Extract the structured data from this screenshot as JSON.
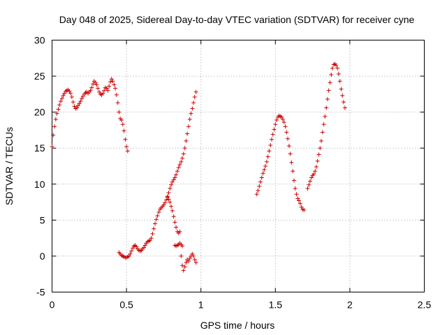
{
  "chart_data": {
    "type": "scatter",
    "title": "Day 048 of 2025, Sidereal Day-to-day VTEC variation (SDTVAR) for receiver cyne",
    "xlabel": "GPS time / hours",
    "ylabel": "SDTVAR / TECUs",
    "xlim": [
      0,
      2.5
    ],
    "ylim": [
      -5,
      30
    ],
    "xticks": [
      0,
      0.5,
      1,
      1.5,
      2,
      2.5
    ],
    "xtick_labels": [
      "0",
      "0.5",
      "1",
      "1.5",
      "2",
      "2.5"
    ],
    "yticks": [
      -5,
      0,
      5,
      10,
      15,
      20,
      25,
      30
    ],
    "ytick_labels": [
      "-5",
      "0",
      "5",
      "10",
      "15",
      "20",
      "25",
      "30"
    ],
    "grid": true,
    "marker": "+",
    "color": "#cc0000",
    "series": [
      {
        "name": "SDTVAR",
        "points": [
          [
            0.0,
            15.2
          ],
          [
            0.008,
            16.8
          ],
          [
            0.017,
            18.0
          ],
          [
            0.025,
            19.0
          ],
          [
            0.033,
            19.8
          ],
          [
            0.042,
            20.4
          ],
          [
            0.05,
            21.0
          ],
          [
            0.058,
            21.5
          ],
          [
            0.067,
            21.9
          ],
          [
            0.075,
            22.3
          ],
          [
            0.083,
            22.6
          ],
          [
            0.092,
            22.9
          ],
          [
            0.1,
            23.0
          ],
          [
            0.108,
            23.1
          ],
          [
            0.117,
            22.9
          ],
          [
            0.125,
            22.6
          ],
          [
            0.133,
            22.1
          ],
          [
            0.142,
            21.4
          ],
          [
            0.15,
            20.8
          ],
          [
            0.158,
            20.5
          ],
          [
            0.167,
            20.6
          ],
          [
            0.175,
            20.9
          ],
          [
            0.183,
            21.2
          ],
          [
            0.192,
            21.5
          ],
          [
            0.2,
            21.9
          ],
          [
            0.208,
            22.2
          ],
          [
            0.217,
            22.5
          ],
          [
            0.225,
            22.7
          ],
          [
            0.233,
            22.8
          ],
          [
            0.242,
            22.6
          ],
          [
            0.25,
            22.8
          ],
          [
            0.258,
            23.0
          ],
          [
            0.267,
            23.4
          ],
          [
            0.275,
            23.9
          ],
          [
            0.283,
            24.3
          ],
          [
            0.292,
            24.1
          ],
          [
            0.3,
            23.8
          ],
          [
            0.308,
            23.3
          ],
          [
            0.317,
            22.8
          ],
          [
            0.325,
            22.5
          ],
          [
            0.333,
            22.4
          ],
          [
            0.342,
            22.6
          ],
          [
            0.35,
            23.0
          ],
          [
            0.358,
            23.4
          ],
          [
            0.367,
            23.3
          ],
          [
            0.375,
            23.0
          ],
          [
            0.383,
            23.6
          ],
          [
            0.392,
            24.2
          ],
          [
            0.4,
            24.6
          ],
          [
            0.408,
            24.3
          ],
          [
            0.417,
            23.8
          ],
          [
            0.425,
            23.3
          ],
          [
            0.433,
            22.4
          ],
          [
            0.442,
            21.3
          ],
          [
            0.45,
            20.0
          ],
          [
            0.458,
            19.1
          ],
          [
            0.467,
            18.9
          ],
          [
            0.475,
            18.3
          ],
          [
            0.483,
            17.4
          ],
          [
            0.492,
            16.2
          ],
          [
            0.5,
            15.2
          ],
          [
            0.508,
            14.6
          ],
          [
            0.45,
            0.5
          ],
          [
            0.458,
            0.3
          ],
          [
            0.467,
            0.1
          ],
          [
            0.475,
            0.0
          ],
          [
            0.483,
            -0.1
          ],
          [
            0.492,
            -0.2
          ],
          [
            0.5,
            -0.2
          ],
          [
            0.508,
            -0.1
          ],
          [
            0.517,
            0.0
          ],
          [
            0.525,
            0.3
          ],
          [
            0.533,
            0.7
          ],
          [
            0.542,
            1.1
          ],
          [
            0.55,
            1.4
          ],
          [
            0.558,
            1.5
          ],
          [
            0.567,
            1.3
          ],
          [
            0.575,
            1.0
          ],
          [
            0.583,
            0.8
          ],
          [
            0.592,
            0.7
          ],
          [
            0.6,
            0.8
          ],
          [
            0.608,
            1.0
          ],
          [
            0.617,
            1.2
          ],
          [
            0.625,
            1.5
          ],
          [
            0.633,
            1.8
          ],
          [
            0.642,
            2.0
          ],
          [
            0.65,
            2.1
          ],
          [
            0.658,
            2.2
          ],
          [
            0.667,
            2.5
          ],
          [
            0.675,
            3.1
          ],
          [
            0.683,
            3.8
          ],
          [
            0.692,
            4.5
          ],
          [
            0.7,
            5.1
          ],
          [
            0.708,
            5.6
          ],
          [
            0.717,
            6.1
          ],
          [
            0.725,
            6.5
          ],
          [
            0.733,
            6.7
          ],
          [
            0.742,
            6.9
          ],
          [
            0.75,
            7.1
          ],
          [
            0.758,
            7.4
          ],
          [
            0.767,
            7.8
          ],
          [
            0.775,
            8.2
          ],
          [
            0.783,
            8.8
          ],
          [
            0.792,
            9.4
          ],
          [
            0.8,
            9.9
          ],
          [
            0.808,
            10.3
          ],
          [
            0.817,
            10.6
          ],
          [
            0.825,
            10.9
          ],
          [
            0.833,
            11.3
          ],
          [
            0.842,
            11.8
          ],
          [
            0.85,
            12.3
          ],
          [
            0.858,
            12.7
          ],
          [
            0.867,
            13.1
          ],
          [
            0.875,
            13.6
          ],
          [
            0.883,
            14.2
          ],
          [
            0.892,
            15.0
          ],
          [
            0.9,
            16.0
          ],
          [
            0.908,
            17.0
          ],
          [
            0.917,
            18.0
          ],
          [
            0.925,
            19.0
          ],
          [
            0.933,
            19.8
          ],
          [
            0.942,
            20.5
          ],
          [
            0.95,
            21.3
          ],
          [
            0.958,
            22.1
          ],
          [
            0.967,
            22.8
          ],
          [
            0.775,
            8.3
          ],
          [
            0.783,
            7.9
          ],
          [
            0.792,
            7.5
          ],
          [
            0.8,
            6.9
          ],
          [
            0.808,
            6.3
          ],
          [
            0.817,
            5.5
          ],
          [
            0.825,
            4.7
          ],
          [
            0.833,
            4.0
          ],
          [
            0.842,
            3.4
          ],
          [
            0.85,
            3.2
          ],
          [
            0.858,
            3.4
          ],
          [
            0.825,
            1.5
          ],
          [
            0.833,
            1.4
          ],
          [
            0.842,
            1.5
          ],
          [
            0.85,
            1.6
          ],
          [
            0.858,
            1.8
          ],
          [
            0.867,
            1.6
          ],
          [
            0.875,
            1.4
          ],
          [
            0.867,
            0.0
          ],
          [
            0.875,
            -1.3
          ],
          [
            0.883,
            -2.0
          ],
          [
            0.892,
            -1.5
          ],
          [
            0.9,
            -0.9
          ],
          [
            0.908,
            -0.5
          ],
          [
            0.917,
            -0.7
          ],
          [
            0.925,
            -0.3
          ],
          [
            0.933,
            0.0
          ],
          [
            0.942,
            0.3
          ],
          [
            0.95,
            0.0
          ],
          [
            0.958,
            -0.5
          ],
          [
            0.967,
            -0.9
          ],
          [
            1.375,
            8.6
          ],
          [
            1.383,
            9.1
          ],
          [
            1.392,
            9.7
          ],
          [
            1.4,
            10.3
          ],
          [
            1.408,
            10.9
          ],
          [
            1.417,
            11.5
          ],
          [
            1.425,
            12.0
          ],
          [
            1.433,
            12.5
          ],
          [
            1.442,
            13.1
          ],
          [
            1.45,
            13.8
          ],
          [
            1.458,
            14.6
          ],
          [
            1.467,
            15.4
          ],
          [
            1.475,
            16.2
          ],
          [
            1.483,
            16.9
          ],
          [
            1.492,
            17.6
          ],
          [
            1.5,
            18.3
          ],
          [
            1.508,
            18.9
          ],
          [
            1.517,
            19.3
          ],
          [
            1.525,
            19.5
          ],
          [
            1.533,
            19.4
          ],
          [
            1.542,
            19.3
          ],
          [
            1.55,
            19.0
          ],
          [
            1.558,
            18.6
          ],
          [
            1.567,
            18.0
          ],
          [
            1.575,
            17.2
          ],
          [
            1.583,
            16.3
          ],
          [
            1.592,
            15.3
          ],
          [
            1.6,
            14.2
          ],
          [
            1.608,
            13.0
          ],
          [
            1.617,
            11.8
          ],
          [
            1.625,
            10.5
          ],
          [
            1.633,
            9.4
          ],
          [
            1.642,
            8.6
          ],
          [
            1.65,
            8.0
          ],
          [
            1.658,
            7.7
          ],
          [
            1.667,
            7.3
          ],
          [
            1.675,
            6.8
          ],
          [
            1.683,
            6.5
          ],
          [
            1.692,
            6.4
          ],
          [
            1.717,
            9.4
          ],
          [
            1.725,
            9.9
          ],
          [
            1.733,
            10.4
          ],
          [
            1.742,
            10.9
          ],
          [
            1.75,
            11.2
          ],
          [
            1.758,
            11.4
          ],
          [
            1.767,
            11.8
          ],
          [
            1.775,
            12.4
          ],
          [
            1.783,
            13.2
          ],
          [
            1.792,
            14.1
          ],
          [
            1.8,
            15.0
          ],
          [
            1.808,
            16.0
          ],
          [
            1.817,
            17.2
          ],
          [
            1.825,
            18.3
          ],
          [
            1.833,
            19.4
          ],
          [
            1.842,
            20.6
          ],
          [
            1.85,
            21.8
          ],
          [
            1.858,
            23.0
          ],
          [
            1.867,
            24.1
          ],
          [
            1.875,
            25.2
          ],
          [
            1.883,
            26.1
          ],
          [
            1.892,
            26.6
          ],
          [
            1.9,
            26.7
          ],
          [
            1.908,
            26.5
          ],
          [
            1.917,
            26.1
          ],
          [
            1.925,
            25.3
          ],
          [
            1.933,
            24.3
          ],
          [
            1.942,
            23.2
          ],
          [
            1.95,
            22.3
          ],
          [
            1.958,
            21.4
          ],
          [
            1.967,
            20.6
          ]
        ]
      }
    ]
  }
}
